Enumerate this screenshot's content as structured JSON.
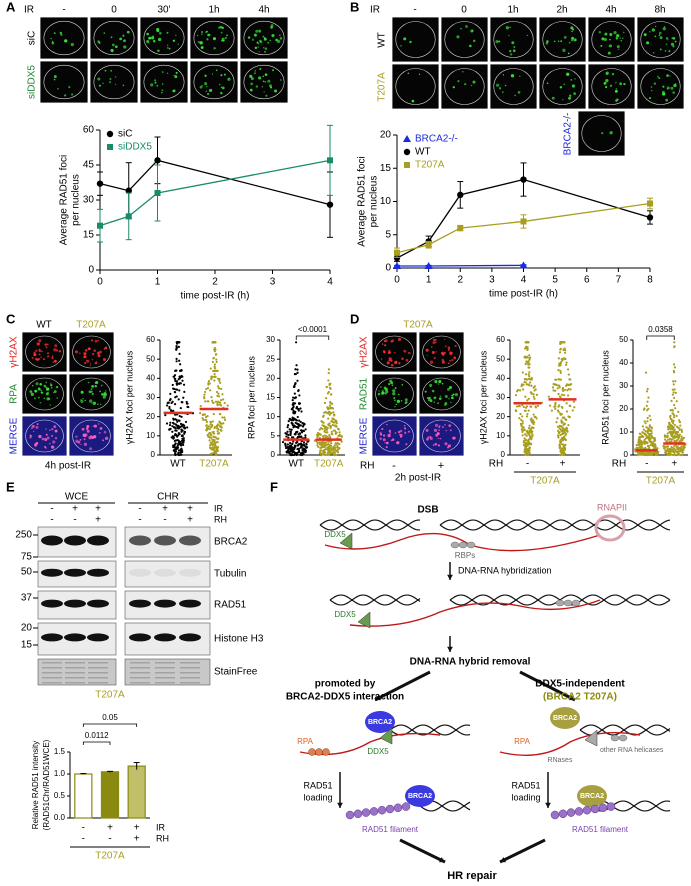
{
  "figure": {
    "A": {
      "label": "A",
      "ir": "IR",
      "conditions": [
        "-",
        "0",
        "30'",
        "1h",
        "4h"
      ],
      "rows": [
        "siC",
        "siDDX5"
      ]
    },
    "B": {
      "label": "B",
      "ir": "IR",
      "conditions": [
        "-",
        "0",
        "1h",
        "2h",
        "4h",
        "8h"
      ],
      "rows": [
        "WT",
        "T207A"
      ],
      "extra_row": "BRCA2-/-"
    },
    "C": {
      "label": "C",
      "columns": [
        "WT",
        "T207A"
      ],
      "rows": [
        "γH2AX",
        "RPA",
        "MERGE"
      ],
      "caption": "4h post-IR"
    },
    "D": {
      "label": "D",
      "column": "T207A",
      "rows": [
        "γH2AX",
        "RAD51",
        "MERGE"
      ],
      "rh": "RH",
      "rh_signs": [
        "-",
        "+"
      ],
      "caption": "2h post-IR"
    },
    "E": {
      "label": "E",
      "fractions": [
        "WCE",
        "CHR"
      ],
      "treatments": [
        "IR",
        "RH"
      ],
      "ir_signs": [
        "-",
        "+",
        "+",
        "-",
        "+",
        "+"
      ],
      "rh_signs": [
        "-",
        "-",
        "+",
        "-",
        "-",
        "+"
      ],
      "markers": [
        250,
        75,
        50,
        37,
        20,
        15
      ],
      "proteins": [
        "BRCA2",
        "Tubulin",
        "RAD51",
        "Histone H3",
        "StainFree"
      ],
      "cell_line": "T207A"
    },
    "F": {
      "label": "F",
      "dsb": "DSB",
      "rnapii": "RNAPII",
      "ddx5_1": "DDX5",
      "rbps": "RBPs",
      "step1": "DNA-RNA hybridization",
      "ddx5_2": "DDX5",
      "step2": "DNA-RNA hybrid removal",
      "left_title": [
        "promoted by",
        "BRCA2-DDX5 interaction"
      ],
      "right_title": [
        "DDX5-independent",
        "(BRCA2 T207A)"
      ],
      "left": {
        "brca2": "BRCA2",
        "ddx5": "DDX5",
        "rpa": "RPA",
        "loading": [
          "RAD51",
          "loading"
        ],
        "brca2_2": "BRCA2",
        "filament": "RAD51 filament"
      },
      "right": {
        "brca2": "BRCA2",
        "rpa": "RPA",
        "helicases": "other RNA helicases",
        "rnases": "RNases",
        "loading": [
          "RAD51",
          "loading"
        ],
        "brca2_2": "BRCA2",
        "filament": "RAD51 filament"
      },
      "result": "HR repair"
    }
  },
  "chart_data": [
    {
      "type": "line",
      "xlabel": "time post-IR (h)",
      "ylabel": [
        "Average RAD51 foci",
        "per nucleus"
      ],
      "xlim": [
        0,
        4
      ],
      "xticks": [
        0,
        1,
        2,
        3,
        4
      ],
      "ylim": [
        0,
        60
      ],
      "yticks": [
        0,
        15,
        30,
        45,
        60
      ],
      "legend": "top-left",
      "series": [
        {
          "name": "siC",
          "color": "#000000",
          "marker": "circle",
          "x": [
            0,
            0.5,
            1,
            4
          ],
          "values": [
            37,
            34,
            47,
            28
          ],
          "errors": [
            5,
            12,
            10,
            14
          ]
        },
        {
          "name": "siDDX5",
          "color": "#1a8a6a",
          "marker": "square",
          "x": [
            0,
            0.5,
            1,
            4
          ],
          "values": [
            19,
            23,
            33,
            47
          ],
          "errors": [
            7,
            10,
            12,
            15
          ]
        }
      ]
    },
    {
      "type": "line",
      "xlabel": "time post-IR (h)",
      "ylabel": [
        "Average RAD51 foci",
        "per nucleus"
      ],
      "xlim": [
        0,
        8
      ],
      "xticks": [
        0,
        1,
        2,
        3,
        4,
        5,
        6,
        7,
        8
      ],
      "ylim": [
        0,
        20
      ],
      "yticks": [
        0,
        5,
        10,
        15,
        20
      ],
      "legend": "top-left",
      "series": [
        {
          "name": "BRCA2-/-",
          "color": "#1a2ae0",
          "marker": "triangle",
          "x": [
            0,
            1,
            4
          ],
          "values": [
            0.3,
            0.3,
            0.4
          ],
          "errors": [
            0.1,
            0.1,
            0.1
          ]
        },
        {
          "name": "WT",
          "color": "#000000",
          "marker": "circle",
          "x": [
            0,
            1,
            2,
            4,
            8
          ],
          "values": [
            1.5,
            4,
            11,
            13.3,
            7.6
          ],
          "errors": [
            0.5,
            0.8,
            2,
            2.5,
            1
          ]
        },
        {
          "name": "T207A",
          "color": "#a89e20",
          "marker": "square",
          "x": [
            0,
            1,
            2,
            4,
            8
          ],
          "values": [
            2.3,
            3.5,
            6,
            7,
            9.7
          ],
          "errors": [
            0.7,
            0.5,
            0.4,
            1,
            0.8
          ]
        }
      ]
    },
    {
      "type": "dot",
      "ylabel": "γH2AX foci per nucleus",
      "categories": [
        "WT",
        "T207A"
      ],
      "colors": [
        "#000000",
        "#a89e20"
      ],
      "median_color": "#e03020",
      "values": [
        22,
        24
      ],
      "ylim": [
        0,
        60
      ],
      "yticks": [
        0,
        10,
        20,
        30,
        40,
        50,
        60
      ]
    },
    {
      "type": "dot",
      "ylabel": "RPA foci per nucleus",
      "categories": [
        "WT",
        "T207A"
      ],
      "colors": [
        "#000000",
        "#a89e20"
      ],
      "median_color": "#e03020",
      "values": [
        4,
        4
      ],
      "ylim": [
        0,
        30
      ],
      "yticks": [
        0,
        5,
        10,
        15,
        20,
        25,
        30
      ],
      "annotation": "<0.0001"
    },
    {
      "type": "dot",
      "ylabel": "γH2AX foci per nucleus",
      "xlabel": "RH",
      "group": "T207A",
      "categories": [
        "-",
        "+"
      ],
      "colors": [
        "#a89e20",
        "#a89e20"
      ],
      "median_color": "#e03020",
      "values": [
        27,
        29
      ],
      "ylim": [
        0,
        60
      ],
      "yticks": [
        0,
        10,
        20,
        30,
        40,
        50,
        60
      ]
    },
    {
      "type": "dot",
      "ylabel": "RAD51 foci per nucleus",
      "xlabel": "RH",
      "group": "T207A",
      "categories": [
        "-",
        "+"
      ],
      "colors": [
        "#a89e20",
        "#a89e20"
      ],
      "median_color": "#e03020",
      "values": [
        2,
        5
      ],
      "ylim": [
        0,
        50
      ],
      "yticks": [
        0,
        10,
        20,
        30,
        40,
        50
      ],
      "annotation": "0.0358"
    },
    {
      "type": "bar",
      "ylabel": [
        "Relative RAD51 intensity",
        "(RAD51Chr/RAD51WCE)"
      ],
      "values": [
        1.0,
        1.05,
        1.18
      ],
      "errors": [
        0.01,
        0.01,
        0.08
      ],
      "colors": [
        "#ffffff",
        "#8a8a10",
        "#c2bf6a"
      ],
      "edge_color": "#8a8a10",
      "ylim": [
        0,
        1.5
      ],
      "yticks": [
        {
          "value": 0,
          "label": "0.0"
        },
        {
          "value": 0.5,
          "label": "0.5"
        },
        {
          "value": 1,
          "label": "1.0"
        },
        {
          "value": 1.5,
          "label": "1.5"
        }
      ],
      "row_labels": [
        "IR",
        "RH"
      ],
      "ir": [
        "-",
        "+",
        "+"
      ],
      "rh": [
        "-",
        "-",
        "+"
      ],
      "group": "T207A",
      "annotations": [
        "0.0112",
        "0.05"
      ]
    }
  ]
}
